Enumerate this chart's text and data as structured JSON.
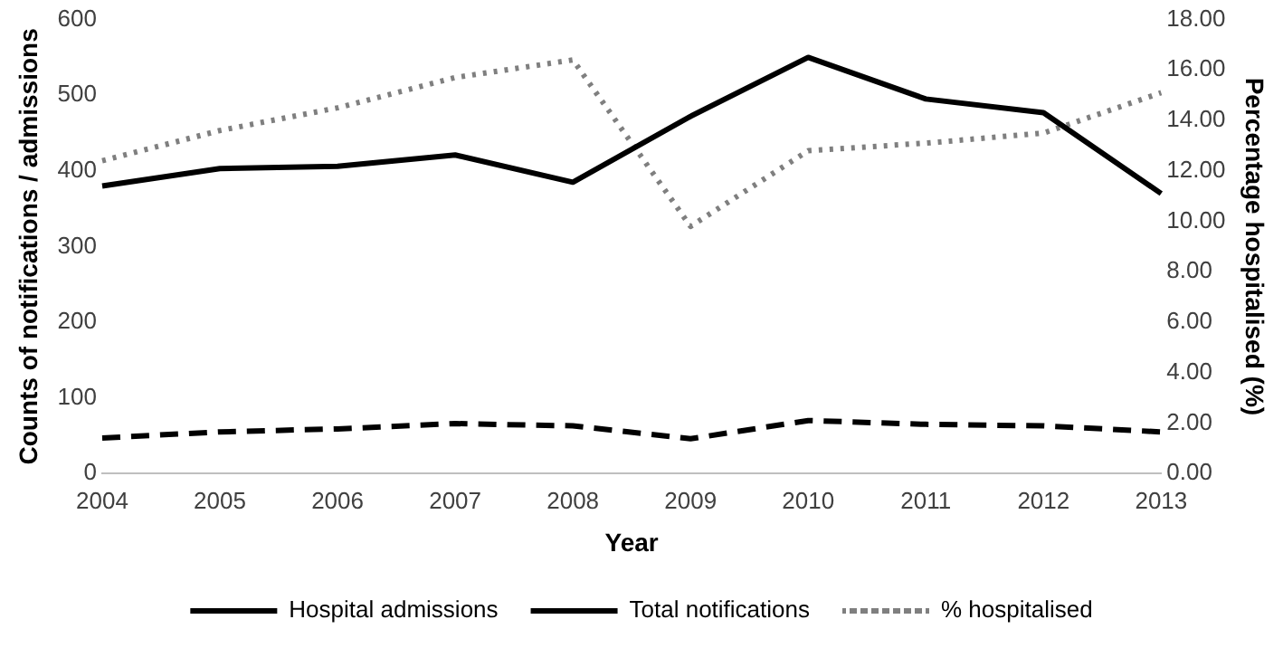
{
  "chart_data": {
    "type": "line",
    "xlabel": "Year",
    "ylabel": "Counts of notifications / admissions",
    "y2label": "Percentage hospitalised (%)",
    "categories": [
      "2004",
      "2005",
      "2006",
      "2007",
      "2008",
      "2009",
      "2010",
      "2011",
      "2012",
      "2013"
    ],
    "series": [
      {
        "name": "Hospital admissions",
        "color": "#000000",
        "line_style": "dashed",
        "values": [
          47,
          55,
          59,
          66,
          63,
          46,
          70,
          65,
          63,
          55
        ]
      },
      {
        "name": "Total notifications",
        "color": "#000000",
        "line_style": "solid",
        "values": [
          380,
          403,
          406,
          421,
          385,
          472,
          550,
          495,
          477,
          370
        ]
      },
      {
        "name": "% hospitalised",
        "color": "#7f7f7f",
        "line_style": "dotted",
        "axis": "y2",
        "values": [
          12.4,
          13.6,
          14.5,
          15.7,
          16.4,
          9.8,
          12.8,
          13.1,
          13.5,
          15.1
        ]
      }
    ],
    "ylim": [
      0,
      600
    ],
    "yticks": [
      0,
      100,
      200,
      300,
      400,
      500,
      600
    ],
    "y2lim": [
      0,
      18
    ],
    "y2ticks": [
      {
        "value": 0,
        "label": "0.00"
      },
      {
        "value": 2,
        "label": "2.00"
      },
      {
        "value": 4,
        "label": "4.00"
      },
      {
        "value": 6,
        "label": "6.00"
      },
      {
        "value": 8,
        "label": "8.00"
      },
      {
        "value": 10,
        "label": "10.00"
      },
      {
        "value": 12,
        "label": "12.00"
      },
      {
        "value": 14,
        "label": "14.00"
      },
      {
        "value": 16,
        "label": "16.00"
      },
      {
        "value": 18,
        "label": "18.00"
      }
    ],
    "grid": false,
    "legend": "bottom",
    "marker": "none"
  }
}
